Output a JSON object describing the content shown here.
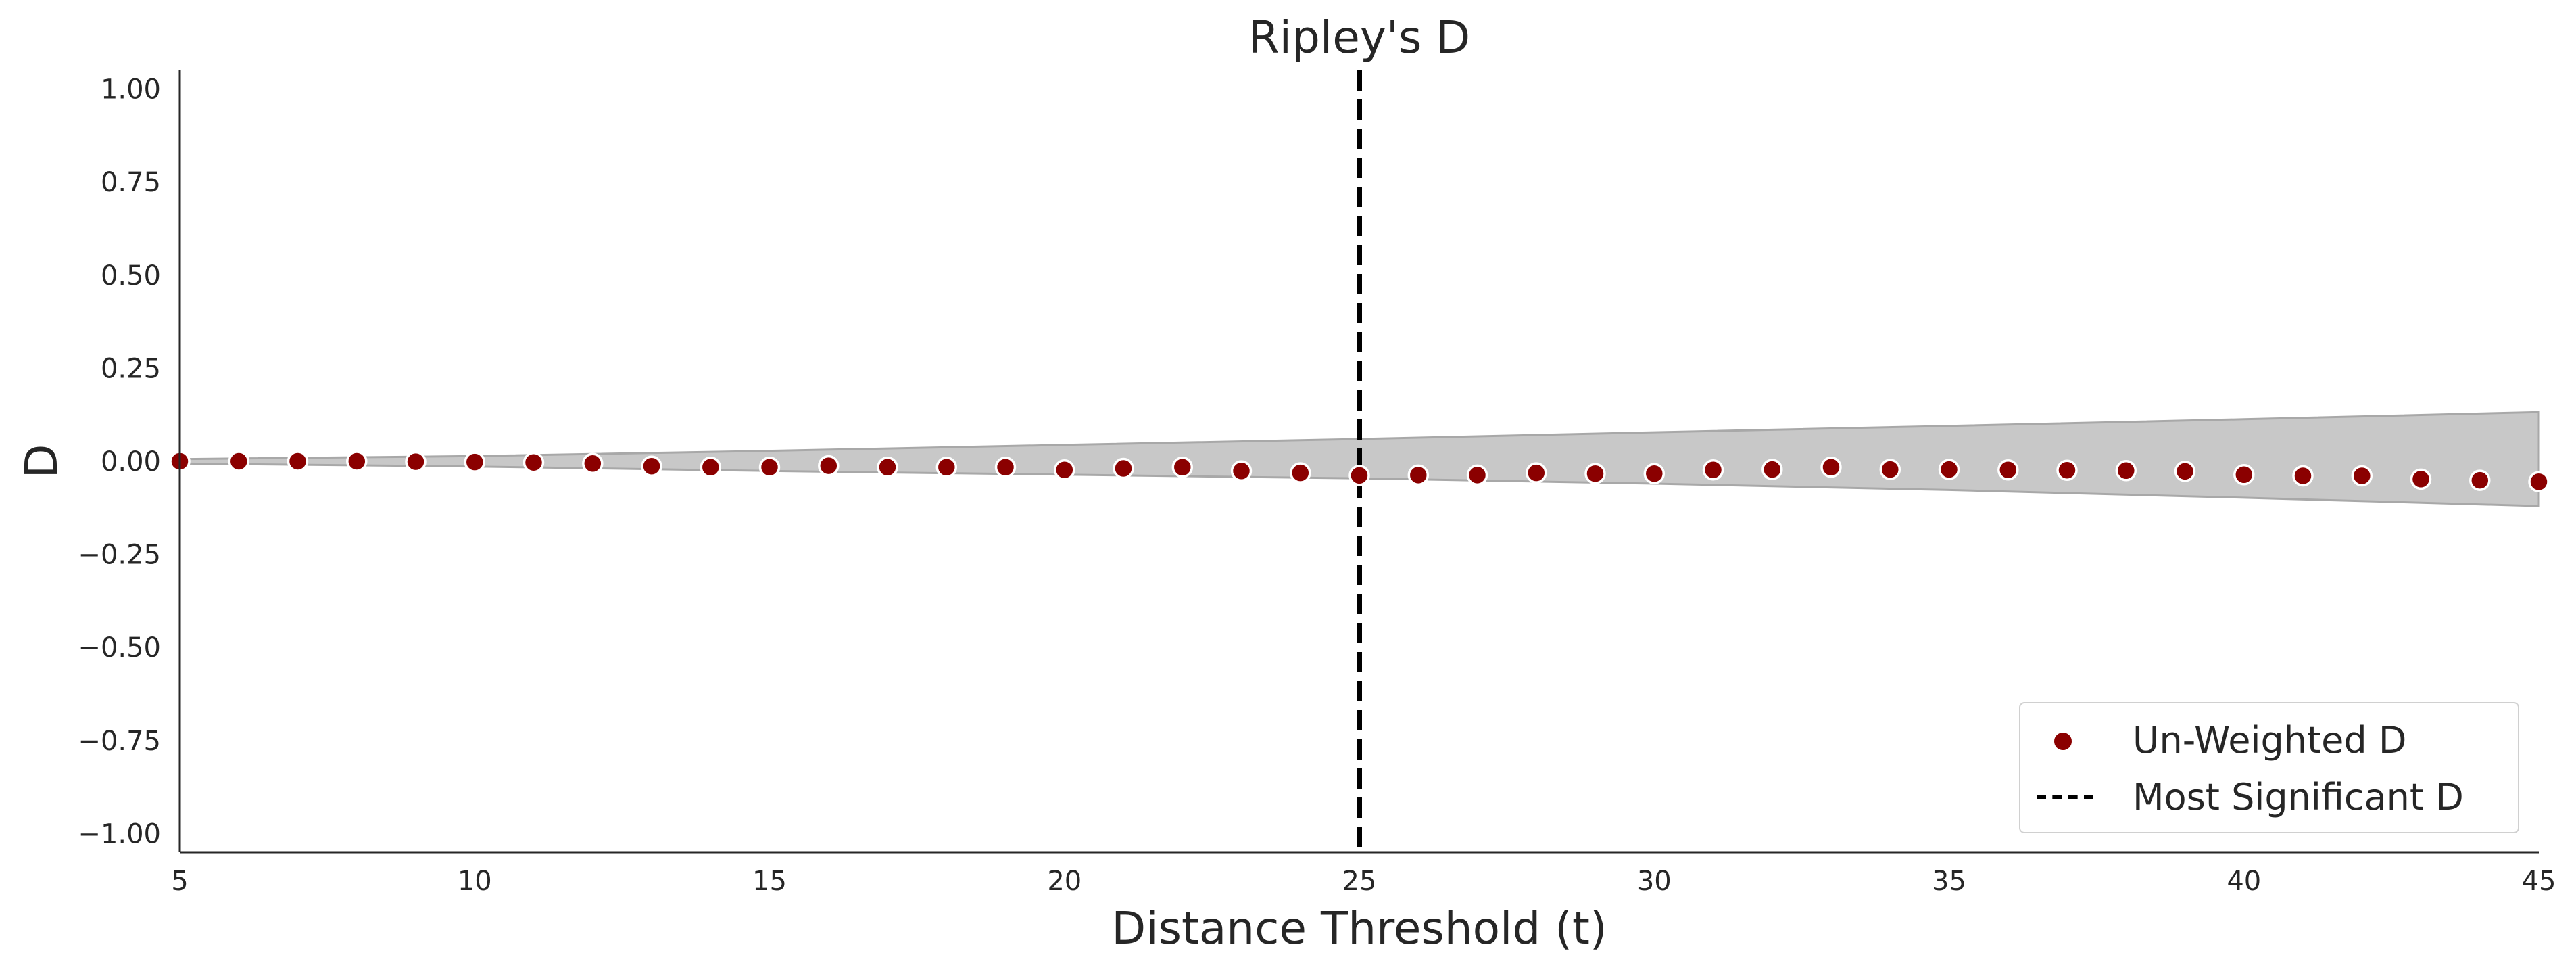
{
  "chart_data": {
    "type": "scatter",
    "title": "Ripley's D",
    "xlabel": "Distance Threshold (t)",
    "ylabel": "D",
    "xlim": [
      5,
      45
    ],
    "ylim": [
      -1.05,
      1.05
    ],
    "xticks": [
      5,
      10,
      15,
      20,
      25,
      30,
      35,
      40,
      45
    ],
    "xtick_labels": [
      "5",
      "10",
      "15",
      "20",
      "25",
      "30",
      "35",
      "40",
      "45"
    ],
    "yticks": [
      1.0,
      0.75,
      0.5,
      0.25,
      0.0,
      -0.25,
      -0.5,
      -0.75,
      -1.0
    ],
    "ytick_labels": [
      "1.00",
      "0.75",
      "0.50",
      "0.25",
      "0.00",
      "−0.25",
      "−0.50",
      "−0.75",
      "−1.00"
    ],
    "grid": false,
    "legend_position": "lower-right",
    "series": [
      {
        "name": "Un-Weighted D",
        "kind": "scatter",
        "color": "#8b0000",
        "x": [
          5,
          6,
          7,
          8,
          9,
          10,
          11,
          12,
          13,
          14,
          15,
          16,
          17,
          18,
          19,
          20,
          21,
          22,
          23,
          24,
          25,
          26,
          27,
          28,
          29,
          30,
          31,
          32,
          33,
          34,
          35,
          36,
          37,
          38,
          39,
          40,
          41,
          42,
          43,
          44,
          45
        ],
        "y": [
          0.0,
          0.0,
          0.0,
          0.0,
          -0.001,
          -0.002,
          -0.003,
          -0.006,
          -0.013,
          -0.016,
          -0.016,
          -0.012,
          -0.016,
          -0.016,
          -0.016,
          -0.023,
          -0.019,
          -0.016,
          -0.026,
          -0.031,
          -0.038,
          -0.037,
          -0.037,
          -0.031,
          -0.033,
          -0.033,
          -0.023,
          -0.022,
          -0.016,
          -0.022,
          -0.022,
          -0.023,
          -0.024,
          -0.025,
          -0.027,
          -0.036,
          -0.039,
          -0.039,
          -0.048,
          -0.051,
          -0.055
        ]
      },
      {
        "name": "Most Significant D",
        "kind": "vline",
        "color": "#000000",
        "x": 25
      }
    ],
    "envelope": {
      "color": "#c8c8c8",
      "x": [
        5,
        10,
        15,
        20,
        25,
        30,
        35,
        40,
        45
      ],
      "upper": [
        0.006,
        0.014,
        0.028,
        0.044,
        0.06,
        0.078,
        0.095,
        0.113,
        0.132
      ],
      "lower": [
        -0.006,
        -0.014,
        -0.026,
        -0.036,
        -0.046,
        -0.06,
        -0.077,
        -0.098,
        -0.12
      ]
    }
  }
}
